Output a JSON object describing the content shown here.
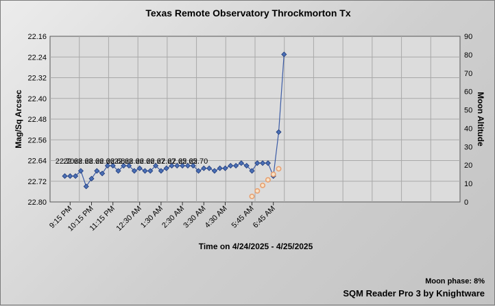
{
  "chart_data": {
    "type": "line",
    "title": "Texas Remote Observatory   Throckmorton Tx",
    "xlabel": "Time on 4/24/2025 - 4/25/2025",
    "ylabel": "Mag/Sq Arcsec",
    "y2label": "Moon Altitude",
    "ylim": [
      22.16,
      22.8
    ],
    "y_inverted": true,
    "y_ticks": [
      "22.16",
      "22.24",
      "22.32",
      "22.40",
      "22.48",
      "22.56",
      "22.64",
      "22.72",
      "22.80"
    ],
    "y2lim": [
      0,
      90
    ],
    "y2_ticks": [
      "0",
      "10",
      "20",
      "30",
      "40",
      "50",
      "60",
      "70",
      "80",
      "90"
    ],
    "x_ticks": [
      "9:15 PM",
      "10:15 PM",
      "11:15 PM",
      "12:30 AM",
      "1:30 AM",
      "2:30 AM",
      "3:30 AM",
      "4:30 AM",
      "5:45 AM",
      "6:45 AM"
    ],
    "x_tick_index": [
      1,
      5,
      9,
      14,
      18,
      22,
      26,
      30,
      35,
      39
    ],
    "grid": true,
    "series": [
      {
        "axis": "left",
        "marker": "diamond",
        "color": "#3b5ba5",
        "values": [
          22.7,
          22.7,
          22.7,
          22.68,
          22.74,
          22.71,
          22.68,
          22.69,
          22.66,
          22.66,
          22.68,
          22.66,
          22.66,
          22.68,
          22.67,
          22.68,
          22.68,
          22.66,
          22.68,
          22.67,
          22.66,
          22.66,
          22.66,
          22.66,
          22.66,
          22.68,
          22.67,
          22.67,
          22.68,
          22.67,
          22.67,
          22.66,
          22.66,
          22.65,
          22.66,
          22.68,
          22.65,
          22.65,
          22.65,
          22.7,
          22.53,
          22.23
        ]
      },
      {
        "axis": "right",
        "marker": "circle",
        "color": "#e8a070",
        "start_index": 35,
        "values": [
          3,
          6,
          9,
          12,
          15,
          18
        ]
      }
    ],
    "data_labels": [
      {
        "index": 0,
        "text": "22.70"
      },
      {
        "index": 3,
        "text": "22.68"
      },
      {
        "index": 7,
        "text": "22.68"
      },
      {
        "index": 11,
        "text": "22.66"
      },
      {
        "index": 15,
        "text": "22.66"
      },
      {
        "index": 19,
        "text": "22.68"
      },
      {
        "index": 22,
        "text": "22.68"
      },
      {
        "index": 26,
        "text": "22.66"
      },
      {
        "index": 30,
        "text": "22.66"
      },
      {
        "index": 34,
        "text": "22.67"
      },
      {
        "index": 38,
        "text": "22.67"
      },
      {
        "index": 42,
        "text": "22.65"
      },
      {
        "index": 46,
        "text": "22.65"
      },
      {
        "index": 50,
        "text": "22.70"
      }
    ]
  },
  "footer": {
    "moon_phase": "Moon phase: 8%",
    "credit": "SQM Reader Pro 3 by Knightware"
  }
}
